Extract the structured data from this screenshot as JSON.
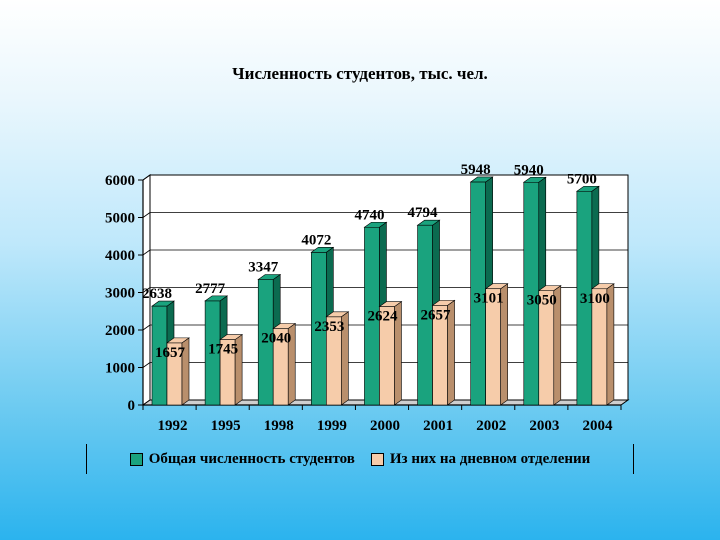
{
  "colors": {
    "series1": "#1aa37e",
    "series1_dark": "#0b6b50",
    "series2": "#f6ccaa",
    "series2_dark": "#b98f6c"
  },
  "chart_data": {
    "type": "bar",
    "title": "Численность студентов, тыс. чел.",
    "categories": [
      "1992",
      "1995",
      "1998",
      "1999",
      "2000",
      "2001",
      "2002",
      "2003",
      "2004"
    ],
    "series": [
      {
        "name": "Общая численность студентов",
        "values": [
          2638,
          2777,
          3347,
          4072,
          4740,
          4794,
          5948,
          5940,
          5700
        ]
      },
      {
        "name": "Из них на дневном отделении",
        "values": [
          1657,
          1745,
          2040,
          2353,
          2624,
          2657,
          3101,
          3050,
          3100
        ]
      }
    ],
    "y_ticks": [
      "0",
      "1000",
      "2000",
      "3000",
      "4000",
      "5000",
      "6000"
    ],
    "ylim": [
      0,
      6000
    ],
    "legend_position": "bottom",
    "xlabel": "",
    "ylabel": ""
  }
}
